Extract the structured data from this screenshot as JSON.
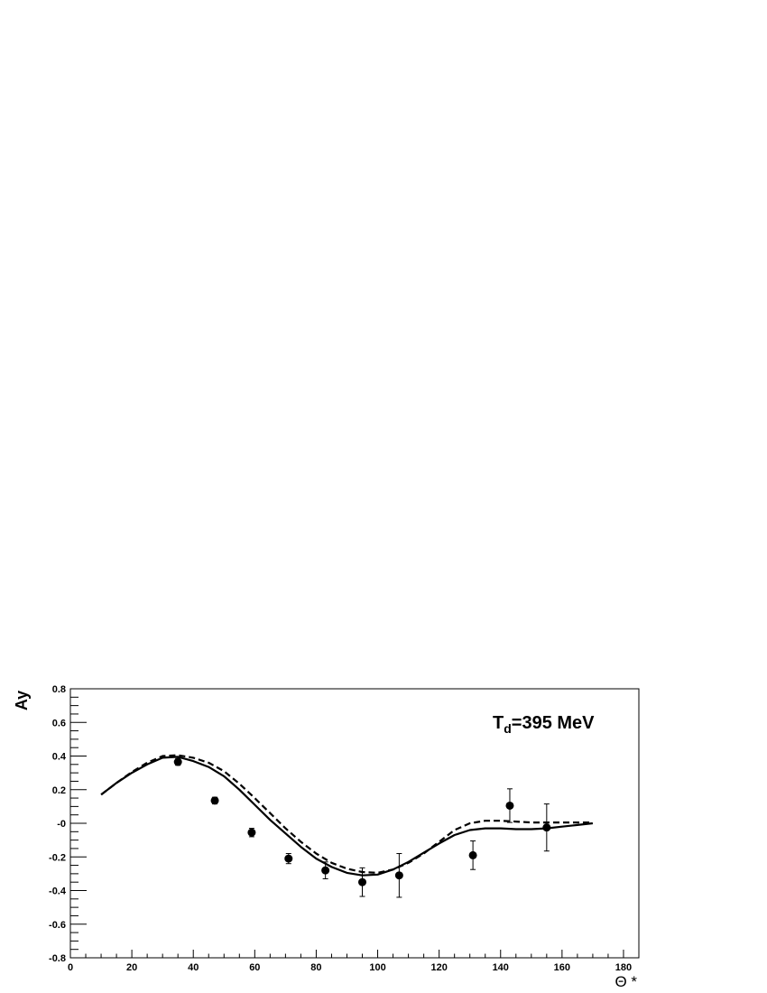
{
  "chart_data": {
    "type": "line",
    "title": "",
    "xlabel": "Θ *",
    "ylabel": "Ay",
    "xlim": [
      0,
      185
    ],
    "ylim": [
      -0.8,
      0.8
    ],
    "x_ticks": [
      0,
      20,
      40,
      60,
      80,
      100,
      120,
      140,
      160,
      180
    ],
    "x_tick_labels": [
      "0",
      "20",
      "40",
      "60",
      "80",
      "100",
      "120",
      "140",
      "160",
      "180"
    ],
    "y_ticks": [
      -0.8,
      -0.6,
      -0.4,
      -0.2,
      0,
      0.2,
      0.4,
      0.6,
      0.8
    ],
    "y_tick_labels": [
      "-0.8",
      "-0.6",
      "-0.4",
      "-0.2",
      "-0",
      "0.2",
      "0.4",
      "0.6",
      "0.8"
    ],
    "grid": false,
    "annotation": {
      "main": "T",
      "sub": "d",
      "rest": "=395 MeV"
    },
    "series": [
      {
        "style": "points-with-errors",
        "x": [
          35,
          47,
          59,
          71,
          83,
          95,
          107,
          131,
          143,
          155
        ],
        "y": [
          0.365,
          0.135,
          -0.055,
          -0.21,
          -0.28,
          -0.35,
          -0.31,
          -0.19,
          0.105,
          -0.025
        ],
        "err": [
          0.02,
          0.02,
          0.025,
          0.03,
          0.05,
          0.085,
          0.13,
          0.085,
          0.1,
          0.14
        ]
      },
      {
        "style": "solid",
        "x": [
          10,
          15,
          20,
          25,
          30,
          35,
          40,
          45,
          50,
          55,
          60,
          65,
          70,
          75,
          80,
          85,
          90,
          95,
          100,
          105,
          110,
          115,
          120,
          125,
          130,
          135,
          140,
          145,
          150,
          155,
          160,
          165,
          170
        ],
        "y": [
          0.17,
          0.24,
          0.3,
          0.35,
          0.39,
          0.395,
          0.37,
          0.335,
          0.28,
          0.2,
          0.11,
          0.02,
          -0.06,
          -0.14,
          -0.21,
          -0.26,
          -0.295,
          -0.31,
          -0.305,
          -0.275,
          -0.23,
          -0.175,
          -0.12,
          -0.07,
          -0.04,
          -0.03,
          -0.03,
          -0.035,
          -0.035,
          -0.03,
          -0.02,
          -0.01,
          0.0
        ]
      },
      {
        "style": "dashed",
        "x": [
          10,
          15,
          20,
          25,
          30,
          35,
          40,
          45,
          50,
          55,
          60,
          65,
          70,
          75,
          80,
          85,
          90,
          95,
          100,
          105,
          110,
          115,
          120,
          125,
          130,
          135,
          140,
          145,
          150,
          155,
          160,
          165,
          170
        ],
        "y": [
          0.17,
          0.24,
          0.305,
          0.36,
          0.4,
          0.405,
          0.39,
          0.36,
          0.31,
          0.235,
          0.15,
          0.06,
          -0.03,
          -0.11,
          -0.18,
          -0.235,
          -0.27,
          -0.29,
          -0.295,
          -0.275,
          -0.235,
          -0.18,
          -0.11,
          -0.04,
          0.0,
          0.015,
          0.015,
          0.01,
          0.005,
          0.005,
          0.005,
          0.005,
          0.005
        ]
      }
    ]
  }
}
